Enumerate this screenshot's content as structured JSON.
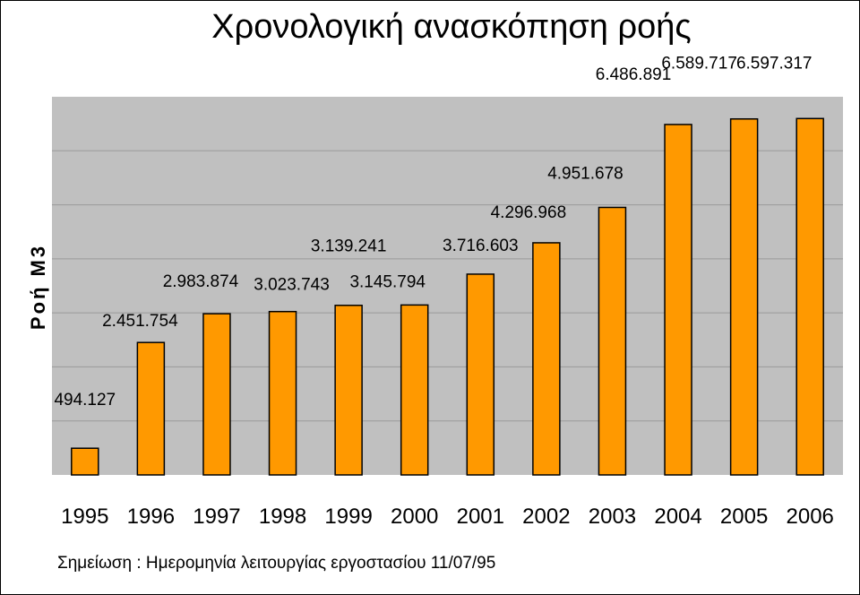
{
  "chart_data": {
    "type": "bar",
    "title": "Χρονολογική ανασκόπηση ροής",
    "ylabel": "Ροή Μ3",
    "xlabel": "",
    "categories": [
      "1995",
      "1996",
      "1997",
      "1998",
      "1999",
      "2000",
      "2001",
      "2002",
      "2003",
      "2004",
      "2005",
      "2006"
    ],
    "values": [
      494127,
      2451754,
      2983874,
      3023743,
      3139241,
      3145794,
      3716603,
      4296968,
      4951678,
      6486891,
      6589717,
      6597317
    ],
    "value_labels": [
      "494.127",
      "2.451.754",
      "2.983.874",
      "3.023.743",
      "3.139.241",
      "3.145.794",
      "3.716.603",
      "4.296.968",
      "4.951.678",
      "6.486.891",
      "6.589.717",
      "6.597.317"
    ],
    "ylim": [
      0,
      7000000
    ],
    "grid": true,
    "bar_color": "#ff9900",
    "plot_background": "#c0c0c0",
    "note": "Σημείωση : Ημερομηνία λειτουργίας εργοστασίου 11/07/95"
  }
}
